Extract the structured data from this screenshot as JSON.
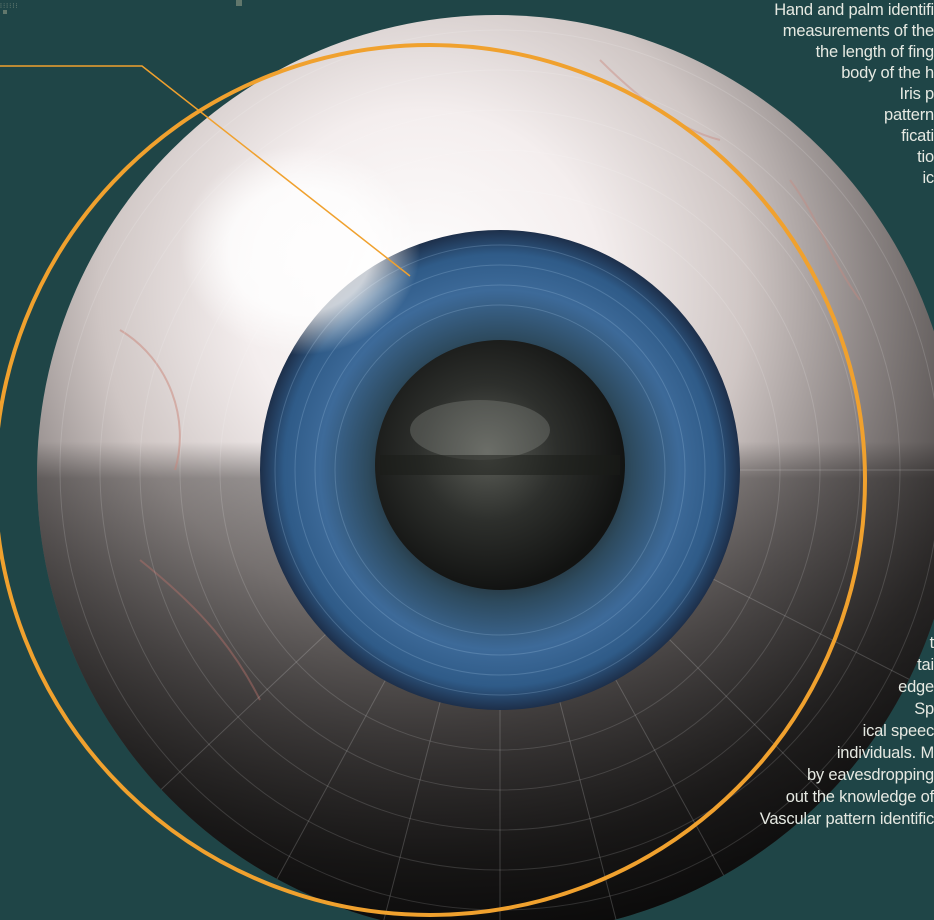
{
  "corner_marks": {
    "label": "⁞⁝⁞⁝⁞⁝"
  },
  "text_lines": [
    "Hand and palm identifi",
    "measurements of the",
    "the length of fing",
    "body of the h",
    "Iris p",
    "pattern",
    "ficati",
    "tio",
    "ic",
    "t",
    "tai",
    "edge",
    "Sp",
    "ical speec",
    "individuals. M",
    "by eavesdropping",
    "out the knowledge of",
    "Vascular pattern identific"
  ],
  "colors": {
    "background": "#1f4547",
    "ring": "#f0a12e",
    "text": "#e6e9e2",
    "iris": "#3d6a99"
  },
  "icons": [
    "eye-illustration",
    "orange-ring",
    "callout-leader-line",
    "circular-grid-overlay"
  ]
}
